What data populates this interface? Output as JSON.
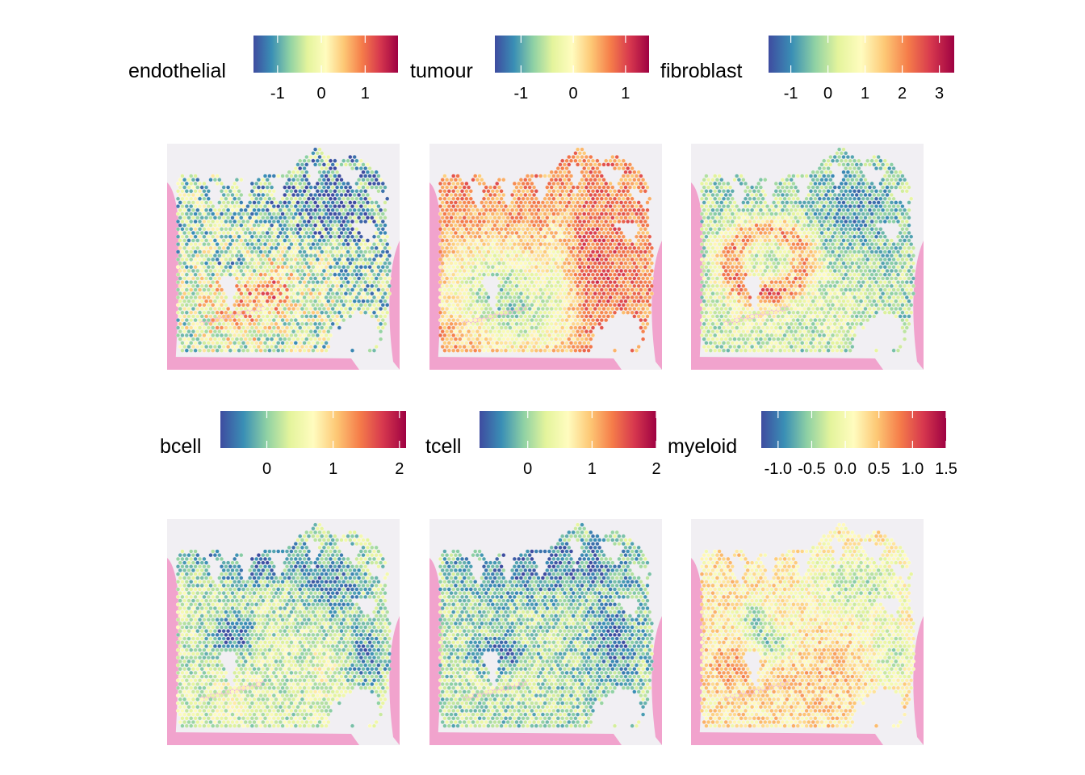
{
  "palette": [
    "#3e4ca0",
    "#3a8fb5",
    "#8fd1a4",
    "#e4f49c",
    "#fffcbf",
    "#fdc875",
    "#f57d4a",
    "#d7384e",
    "#9e0142"
  ],
  "tissue_colors": {
    "background": "#f1eff3",
    "stain": "#f1a3cd",
    "stain_dark": "#e87dba"
  },
  "chart_data": [
    {
      "type": "heatmap",
      "legend_title": "endothelial",
      "scale_min": -1.55,
      "scale_max": 1.75,
      "ticks": [
        -1,
        0,
        1
      ],
      "tick_labels": [
        "-1",
        "0",
        "1"
      ],
      "pattern": "endothelial"
    },
    {
      "type": "heatmap",
      "legend_title": "tumour",
      "scale_min": -1.5,
      "scale_max": 1.45,
      "ticks": [
        -1,
        0,
        1
      ],
      "tick_labels": [
        "-1",
        "0",
        "1"
      ],
      "pattern": "tumour"
    },
    {
      "type": "heatmap",
      "legend_title": "fibroblast",
      "scale_min": -1.6,
      "scale_max": 3.4,
      "ticks": [
        -1,
        0,
        1,
        2,
        3
      ],
      "tick_labels": [
        "-1",
        "0",
        "1",
        "2",
        "3"
      ],
      "pattern": "fibroblast"
    },
    {
      "type": "heatmap",
      "legend_title": "bcell",
      "scale_min": -0.7,
      "scale_max": 2.1,
      "ticks": [
        0,
        1,
        2
      ],
      "tick_labels": [
        "0",
        "1",
        "2"
      ],
      "pattern": "bcell"
    },
    {
      "type": "heatmap",
      "legend_title": "tcell",
      "scale_min": -0.75,
      "scale_max": 2.0,
      "ticks": [
        0,
        1,
        2
      ],
      "tick_labels": [
        "0",
        "1",
        "2"
      ],
      "pattern": "tcell"
    },
    {
      "type": "heatmap",
      "legend_title": "myeloid",
      "scale_min": -1.25,
      "scale_max": 1.5,
      "ticks": [
        -1.0,
        -0.5,
        0.0,
        0.5,
        1.0,
        1.5
      ],
      "tick_labels": [
        "-1.0",
        "-0.5",
        "0.0",
        "0.5",
        "1.0",
        "1.5"
      ],
      "pattern": "myeloid"
    }
  ]
}
